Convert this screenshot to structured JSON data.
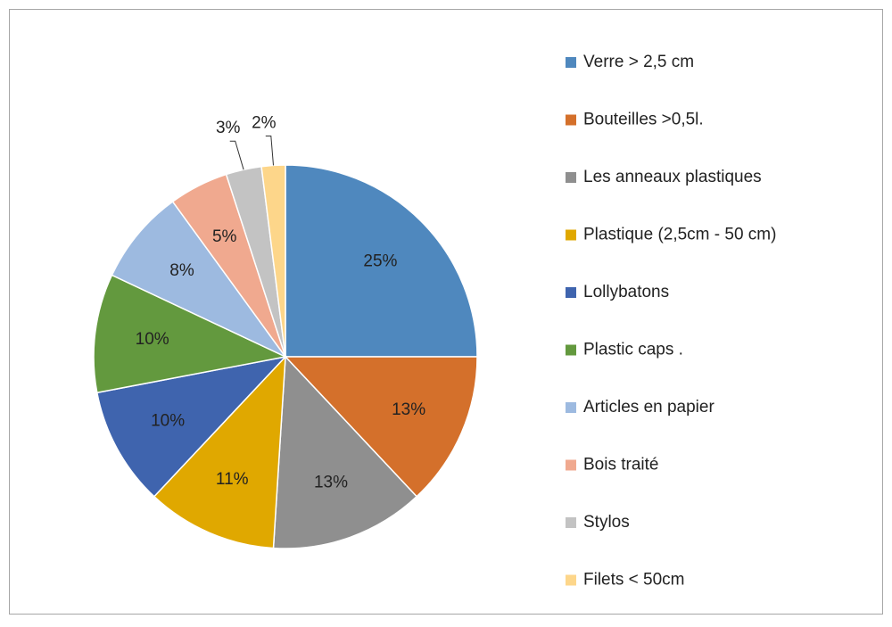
{
  "chart_data": {
    "type": "pie",
    "categories": [
      "Verre > 2,5 cm",
      "Bouteilles >0,5l.",
      "Les anneaux plastiques",
      "Plastique (2,5cm - 50 cm)",
      "Lollybatons",
      "Plastic caps .",
      "Articles en papier",
      "Bois traité",
      "Stylos",
      "Filets  < 50cm"
    ],
    "values": [
      25,
      13,
      13,
      11,
      10,
      10,
      8,
      5,
      3,
      2
    ],
    "value_labels": [
      "25%",
      "13%",
      "13%",
      "11%",
      "10%",
      "10%",
      "8%",
      "5%",
      "3%",
      "2%"
    ],
    "colors": [
      "#4f88be",
      "#d4702b",
      "#8f8f8f",
      "#e0a800",
      "#3f64ae",
      "#63993e",
      "#9dbae0",
      "#f0a98f",
      "#c3c3c3",
      "#fdd68a"
    ],
    "legend": "right"
  }
}
